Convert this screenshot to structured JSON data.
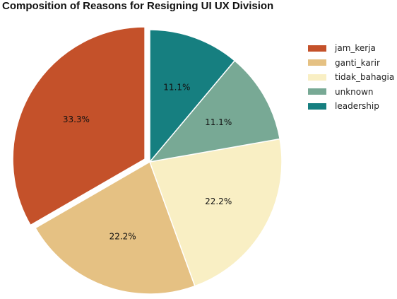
{
  "chart_data": {
    "type": "pie",
    "title": "Composition of Reasons for Resigning UI UX Division",
    "categories": [
      "jam_kerja",
      "ganti_karir",
      "tidak_bahagia",
      "unknown",
      "leadership"
    ],
    "values": [
      33.3,
      22.2,
      22.2,
      11.1,
      11.1
    ],
    "labels": [
      "33.3%",
      "22.2%",
      "22.2%",
      "11.1%",
      "11.1%"
    ],
    "colors": [
      "#c4512a",
      "#e5c183",
      "#f9efc4",
      "#78a995",
      "#167f80"
    ],
    "exploded": [
      "jam_kerja"
    ],
    "start_angle_deg": 90,
    "direction": "counterclockwise",
    "legend_position": "right"
  }
}
